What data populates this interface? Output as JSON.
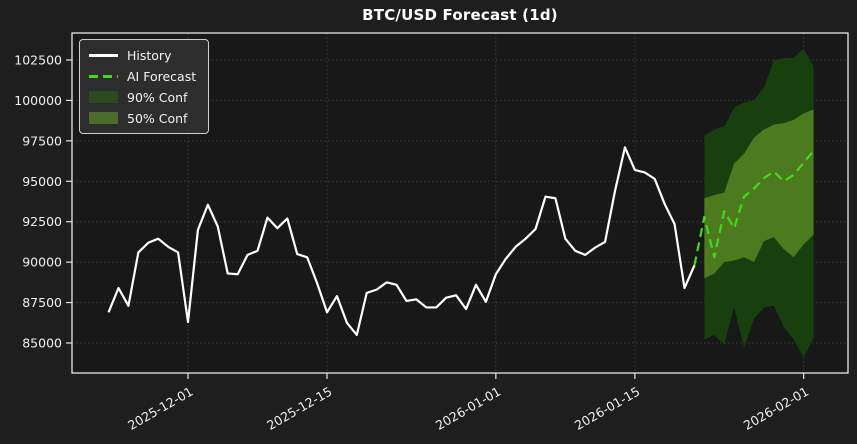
{
  "title": "BTC/USD Forecast (1d)",
  "colors": {
    "figure_bg": "#1e1e1e",
    "plot_bg": "#181818",
    "grid": "#3d3d3d",
    "spine": "#e6e6e6",
    "tick_label": "#f0f0f0",
    "history_line": "#ffffff",
    "forecast_line": "#46d71d",
    "band_90": "#183f0e",
    "band_50": "#4c7a1e",
    "legend_bg": "#303030",
    "legend_border": "#cfcfcf"
  },
  "legend": {
    "items": [
      {
        "label": "History",
        "swatch": "line",
        "color": "#ffffff"
      },
      {
        "label": "AI Forecast",
        "swatch": "dashed",
        "color": "#46d71d"
      },
      {
        "label": "90% Conf",
        "swatch": "patch",
        "color": "#2b4a1f"
      },
      {
        "label": "50% Conf",
        "swatch": "patch",
        "color": "#4c6c2e"
      }
    ]
  },
  "chart_data": {
    "type": "line",
    "title": "BTC/USD Forecast (1d)",
    "xlabel": "",
    "ylabel": "",
    "grid": true,
    "legend_position": "upper left",
    "x_axis": {
      "type": "date",
      "ticks": [
        "2025-12-01",
        "2025-12-15",
        "2026-01-01",
        "2026-01-15",
        "2026-02-01"
      ],
      "tick_labels": [
        "2025-12-01",
        "2025-12-15",
        "2026-01-01",
        "2026-01-15",
        "2026-02-01"
      ],
      "range": [
        "2025-11-19",
        "2026-02-05"
      ]
    },
    "y_axis": {
      "ticks": [
        85000,
        87500,
        90000,
        92500,
        95000,
        97500,
        100000,
        102500
      ],
      "tick_labels": [
        "85000",
        "87500",
        "90000",
        "92500",
        "95000",
        "97500",
        "100000",
        "102500"
      ],
      "range": [
        83150,
        104170
      ]
    },
    "series": [
      {
        "name": "History",
        "style": "solid",
        "color": "#ffffff",
        "dates": [
          "2025-11-23",
          "2025-11-24",
          "2025-11-25",
          "2025-11-26",
          "2025-11-27",
          "2025-11-28",
          "2025-11-29",
          "2025-11-30",
          "2025-12-01",
          "2025-12-02",
          "2025-12-03",
          "2025-12-04",
          "2025-12-05",
          "2025-12-06",
          "2025-12-07",
          "2025-12-08",
          "2025-12-09",
          "2025-12-10",
          "2025-12-11",
          "2025-12-12",
          "2025-12-13",
          "2025-12-14",
          "2025-12-15",
          "2025-12-16",
          "2025-12-17",
          "2025-12-18",
          "2025-12-19",
          "2025-12-20",
          "2025-12-21",
          "2025-12-22",
          "2025-12-23",
          "2025-12-24",
          "2025-12-25",
          "2025-12-26",
          "2025-12-27",
          "2025-12-28",
          "2025-12-29",
          "2025-12-30",
          "2025-12-31",
          "2026-01-01",
          "2026-01-02",
          "2026-01-03",
          "2026-01-04",
          "2026-01-05",
          "2026-01-06",
          "2026-01-07",
          "2026-01-08",
          "2026-01-09",
          "2026-01-10",
          "2026-01-11",
          "2026-01-12",
          "2026-01-13",
          "2026-01-14",
          "2026-01-15",
          "2026-01-16",
          "2026-01-17",
          "2026-01-18",
          "2026-01-19",
          "2026-01-20",
          "2026-01-21"
        ],
        "values": [
          86900,
          88400,
          87300,
          90600,
          91200,
          91450,
          90950,
          90600,
          86300,
          92000,
          93550,
          92200,
          89300,
          89250,
          90450,
          90700,
          92750,
          92100,
          92700,
          90500,
          90300,
          88700,
          86900,
          87900,
          86250,
          85500,
          88100,
          88300,
          88750,
          88600,
          87600,
          87700,
          87200,
          87200,
          87800,
          87950,
          87100,
          88600,
          87550,
          89250,
          90200,
          90950,
          91450,
          92050,
          94050,
          93950,
          91450,
          90700,
          90450,
          90900,
          91250,
          94400,
          97100,
          95700,
          95550,
          95150,
          93600,
          92350,
          88400,
          89800
        ]
      },
      {
        "name": "AI Forecast",
        "style": "dashed",
        "color": "#46d71d",
        "dates": [
          "2026-01-21",
          "2026-01-22",
          "2026-01-23",
          "2026-01-24",
          "2026-01-25",
          "2026-01-26",
          "2026-01-27",
          "2026-01-28",
          "2026-01-29",
          "2026-01-30",
          "2026-01-31",
          "2026-02-01",
          "2026-02-02"
        ],
        "values": [
          89800,
          92800,
          90300,
          93150,
          92100,
          94050,
          94550,
          95200,
          95600,
          95000,
          95400,
          96150,
          96900
        ]
      }
    ],
    "bands": [
      {
        "name": "90% Conf",
        "color": "#183f0e",
        "dates": [
          "2026-01-22",
          "2026-01-23",
          "2026-01-24",
          "2026-01-25",
          "2026-01-26",
          "2026-01-27",
          "2026-01-28",
          "2026-01-29",
          "2026-01-30",
          "2026-01-31",
          "2026-02-01",
          "2026-02-02"
        ],
        "upper": [
          97800,
          98200,
          98400,
          99550,
          99870,
          100000,
          100800,
          102500,
          102600,
          102650,
          103200,
          102100
        ],
        "lower": [
          85200,
          85500,
          84900,
          87200,
          84700,
          86500,
          87200,
          87300,
          86000,
          85200,
          84100,
          85300
        ]
      },
      {
        "name": "50% Conf",
        "color": "#4c7a1e",
        "dates": [
          "2026-01-22",
          "2026-01-23",
          "2026-01-24",
          "2026-01-25",
          "2026-01-26",
          "2026-01-27",
          "2026-01-28",
          "2026-01-29",
          "2026-01-30",
          "2026-01-31",
          "2026-02-01",
          "2026-02-02"
        ],
        "upper": [
          93950,
          94150,
          94300,
          96100,
          96700,
          97700,
          98200,
          98500,
          98600,
          98800,
          99200,
          99450
        ],
        "lower": [
          89000,
          89300,
          90000,
          90100,
          90300,
          90000,
          91300,
          91550,
          90800,
          90300,
          91100,
          91700
        ]
      }
    ]
  }
}
